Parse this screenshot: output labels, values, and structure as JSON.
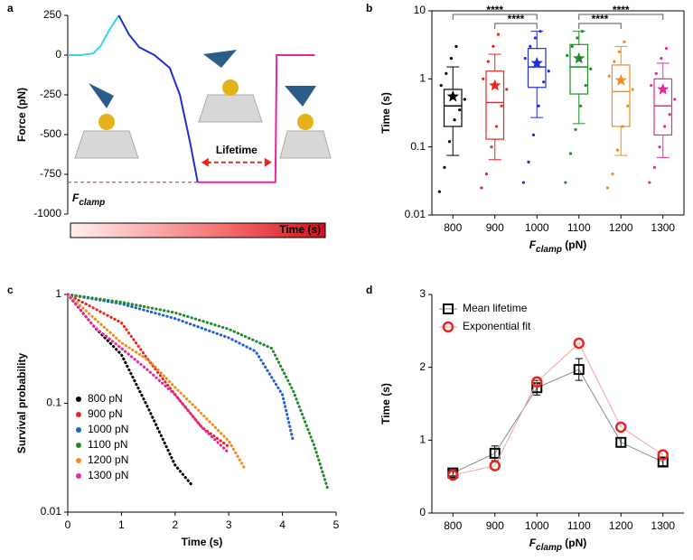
{
  "chart_data": [
    {
      "panel": "a",
      "type": "line",
      "ylabel": "Force (pN)",
      "ylim": [
        -1000,
        250
      ],
      "yticks": [
        250,
        0,
        -250,
        -500,
        -750,
        -1000
      ],
      "xlim": [
        0,
        100
      ],
      "x": [
        0,
        5,
        10,
        13,
        16,
        20,
        24,
        28,
        34,
        40,
        44,
        48,
        51,
        60,
        70,
        81.5,
        82,
        90,
        97
      ],
      "series": [
        {
          "color": "#33d6e8",
          "values": [
            0,
            0,
            10,
            60,
            150,
            250,
            null,
            null,
            null,
            null,
            null,
            null,
            null,
            null,
            null,
            null,
            null,
            null,
            null
          ]
        },
        {
          "color": "#1f2fd0",
          "values": [
            null,
            null,
            null,
            null,
            null,
            250,
            130,
            50,
            0,
            -80,
            -250,
            -550,
            -800,
            null,
            null,
            null,
            null,
            null,
            null
          ]
        },
        {
          "color": "#e8289a",
          "values": [
            null,
            null,
            null,
            null,
            null,
            null,
            null,
            null,
            null,
            null,
            null,
            null,
            -800,
            -800,
            -800,
            -800,
            0,
            0,
            0
          ]
        }
      ],
      "clamp": {
        "value": -800,
        "color": "#e8261f",
        "label": {
          "symbol": "F",
          "subscript": "clamp"
        }
      },
      "annotation": "Lifetime",
      "time_bar_label": "Time (s)"
    },
    {
      "panel": "b",
      "type": "box",
      "ylabel": "Time (s)",
      "xlabel": {
        "symbol": "F",
        "subscript": "clamp",
        "unit": " (pN)"
      },
      "log_y": true,
      "ylim": [
        0.01,
        10
      ],
      "yticks": [
        0.01,
        0.1,
        1,
        10
      ],
      "categories": [
        "800",
        "900",
        "1000",
        "1100",
        "1200",
        "1300"
      ],
      "boxes": [
        {
          "color": "#000000",
          "whisker_low": 0.075,
          "q1": 0.2,
          "median": 0.4,
          "q3": 0.7,
          "whisker_high": 1.5,
          "mean": 0.55,
          "points": [
            0.022,
            0.05,
            0.12,
            0.25,
            0.35,
            0.5,
            0.8,
            1.2,
            2,
            3
          ]
        },
        {
          "color": "#e8261f",
          "whisker_low": 0.065,
          "q1": 0.13,
          "median": 0.45,
          "q3": 1.3,
          "whisker_high": 2.3,
          "mean": 0.8,
          "points": [
            0.025,
            0.04,
            0.1,
            0.2,
            0.4,
            0.7,
            1,
            1.8,
            3,
            4.5
          ]
        },
        {
          "color": "#1f2fd0",
          "whisker_low": 0.27,
          "q1": 0.75,
          "median": 1.5,
          "q3": 2.8,
          "whisker_high": 5,
          "mean": 1.7,
          "points": [
            0.03,
            0.06,
            0.15,
            0.4,
            0.9,
            1.3,
            2,
            3,
            4,
            5
          ]
        },
        {
          "color": "#1f8a2a",
          "whisker_low": 0.22,
          "q1": 0.6,
          "median": 1.5,
          "q3": 3.2,
          "whisker_high": 5,
          "mean": 2,
          "points": [
            0.03,
            0.08,
            0.18,
            0.4,
            0.8,
            1.4,
            2.2,
            3,
            4,
            5
          ]
        },
        {
          "color": "#f28c1c",
          "whisker_low": 0.075,
          "q1": 0.2,
          "median": 0.65,
          "q3": 1.6,
          "whisker_high": 3,
          "mean": 0.95,
          "points": [
            0.025,
            0.04,
            0.09,
            0.2,
            0.4,
            0.7,
            1.1,
            1.8,
            2.5,
            3.5
          ]
        },
        {
          "color": "#e8289a",
          "whisker_low": 0.07,
          "q1": 0.15,
          "median": 0.4,
          "q3": 1,
          "whisker_high": 1.7,
          "mean": 0.7,
          "points": [
            0.03,
            0.05,
            0.1,
            0.2,
            0.3,
            0.5,
            0.8,
            1.2,
            2,
            2.8
          ]
        }
      ],
      "significance": [
        {
          "label": "****",
          "pair": [
            "800",
            "1000"
          ]
        },
        {
          "label": "****",
          "pair": [
            "900",
            "1000"
          ]
        },
        {
          "label": "****",
          "pair": [
            "1100",
            "1300"
          ]
        },
        {
          "label": "****",
          "pair": [
            "1100",
            "1200"
          ]
        }
      ]
    },
    {
      "panel": "c",
      "type": "line",
      "ylabel": "Survival probability",
      "xlabel": "Time (s)",
      "log_y": true,
      "ylim": [
        0.01,
        1
      ],
      "yticks": [
        0.01,
        0.1,
        1
      ],
      "xlim": [
        0,
        5
      ],
      "xticks": [
        0,
        1,
        2,
        3,
        4,
        5
      ],
      "legend": "lower-left",
      "series": [
        {
          "name": "800 pN",
          "color": "#000000",
          "x": [
            0,
            0.5,
            1,
            1.5,
            2,
            2.3
          ],
          "values": [
            1,
            0.5,
            0.28,
            0.09,
            0.027,
            0.018
          ]
        },
        {
          "name": "900 pN",
          "color": "#e8261f",
          "x": [
            0,
            1,
            1.5,
            2,
            2.5,
            3
          ],
          "values": [
            1,
            0.55,
            0.25,
            0.12,
            0.06,
            0.04
          ]
        },
        {
          "name": "1000 pN",
          "color": "#1f5fd0",
          "x": [
            0,
            1,
            2,
            3,
            3.5,
            4,
            4.2
          ],
          "values": [
            1,
            0.82,
            0.6,
            0.4,
            0.3,
            0.12,
            0.045
          ]
        },
        {
          "name": "1100 pN",
          "color": "#1f8a2a",
          "x": [
            0,
            1,
            2,
            3,
            3.8,
            4.2,
            4.6,
            4.85
          ],
          "values": [
            1,
            0.85,
            0.68,
            0.48,
            0.32,
            0.13,
            0.04,
            0.016
          ]
        },
        {
          "name": "1200 pN",
          "color": "#f28c1c",
          "x": [
            0,
            0.5,
            1,
            1.5,
            2,
            2.5,
            3,
            3.3
          ],
          "values": [
            1,
            0.6,
            0.36,
            0.25,
            0.14,
            0.08,
            0.045,
            0.025
          ]
        },
        {
          "name": "1300 pN",
          "color": "#e8289a",
          "x": [
            0,
            0.5,
            1,
            1.5,
            2,
            2.5,
            3
          ],
          "values": [
            1,
            0.5,
            0.32,
            0.2,
            0.12,
            0.06,
            0.035
          ]
        }
      ]
    },
    {
      "panel": "d",
      "type": "errorbar",
      "ylabel": "Time (s)",
      "xlabel": {
        "symbol": "F",
        "subscript": "clamp",
        "unit": " (pN)"
      },
      "ylim": [
        0,
        3
      ],
      "yticks": [
        0,
        1,
        2,
        3
      ],
      "categories": [
        "800",
        "900",
        "1000",
        "1100",
        "1200",
        "1300"
      ],
      "legend": "upper-left",
      "series": [
        {
          "name": "Mean lifetime",
          "color": "#000000",
          "line_color": "#8a8a8a",
          "marker": "square",
          "values": [
            0.55,
            0.82,
            1.72,
            1.97,
            0.97,
            0.7
          ],
          "errors": [
            0.04,
            0.1,
            0.1,
            0.15,
            0.06,
            0.05
          ]
        },
        {
          "name": "Exponential fit",
          "color": "#e8261f",
          "line_color": "#f4a0a0",
          "marker": "circle",
          "values": [
            0.52,
            0.65,
            1.8,
            2.33,
            1.18,
            0.8
          ]
        }
      ]
    }
  ]
}
